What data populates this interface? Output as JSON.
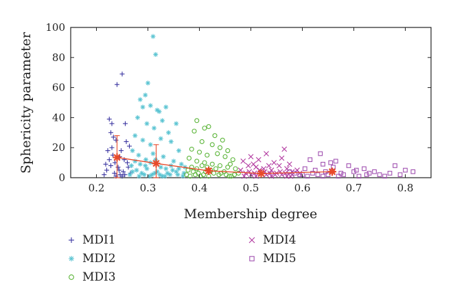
{
  "chart_data": {
    "type": "scatter",
    "xlabel": "Membership degree",
    "ylabel": "Sphericity parameter",
    "xlim": [
      0.15,
      0.85
    ],
    "ylim": [
      0,
      100
    ],
    "x_ticks": [
      0.2,
      0.3,
      0.4,
      0.5,
      0.6,
      0.7,
      0.8
    ],
    "y_ticks": [
      0,
      20,
      40,
      60,
      80,
      100
    ],
    "grid": false,
    "legend_position": "below",
    "series": [
      {
        "name": "MDI1",
        "marker": "plus",
        "color": "#3a34a0",
        "points": [
          [
            0.215,
            2
          ],
          [
            0.22,
            5
          ],
          [
            0.222,
            18
          ],
          [
            0.225,
            12
          ],
          [
            0.228,
            8
          ],
          [
            0.23,
            20
          ],
          [
            0.232,
            15
          ],
          [
            0.235,
            3
          ],
          [
            0.236,
            10
          ],
          [
            0.238,
            25
          ],
          [
            0.24,
            62
          ],
          [
            0.242,
            7
          ],
          [
            0.245,
            14
          ],
          [
            0.246,
            2
          ],
          [
            0.248,
            18
          ],
          [
            0.25,
            69
          ],
          [
            0.252,
            4
          ],
          [
            0.254,
            12
          ],
          [
            0.256,
            36
          ],
          [
            0.258,
            24
          ],
          [
            0.26,
            10
          ],
          [
            0.262,
            7
          ],
          [
            0.264,
            21
          ],
          [
            0.266,
            3
          ],
          [
            0.225,
            39
          ],
          [
            0.23,
            36
          ],
          [
            0.228,
            30
          ],
          [
            0.233,
            27
          ],
          [
            0.218,
            9
          ],
          [
            0.238,
            1
          ],
          [
            0.244,
            5
          ],
          [
            0.25,
            1
          ],
          [
            0.255,
            2
          ]
        ]
      },
      {
        "name": "MDI2",
        "marker": "asterisk",
        "color": "#5bc4d2",
        "points": [
          [
            0.31,
            94
          ],
          [
            0.315,
            82
          ],
          [
            0.3,
            63
          ],
          [
            0.295,
            55
          ],
          [
            0.285,
            52
          ],
          [
            0.29,
            47
          ],
          [
            0.305,
            48
          ],
          [
            0.318,
            45
          ],
          [
            0.322,
            44
          ],
          [
            0.335,
            47
          ],
          [
            0.28,
            40
          ],
          [
            0.298,
            36
          ],
          [
            0.312,
            33
          ],
          [
            0.328,
            38
          ],
          [
            0.34,
            30
          ],
          [
            0.355,
            36
          ],
          [
            0.275,
            28
          ],
          [
            0.29,
            25
          ],
          [
            0.305,
            22
          ],
          [
            0.325,
            26
          ],
          [
            0.345,
            24
          ],
          [
            0.36,
            18
          ],
          [
            0.27,
            18
          ],
          [
            0.282,
            15
          ],
          [
            0.296,
            12
          ],
          [
            0.31,
            16
          ],
          [
            0.33,
            14
          ],
          [
            0.35,
            11
          ],
          [
            0.365,
            9
          ],
          [
            0.372,
            7
          ],
          [
            0.268,
            8
          ],
          [
            0.278,
            5
          ],
          [
            0.288,
            3
          ],
          [
            0.298,
            6
          ],
          [
            0.308,
            2
          ],
          [
            0.318,
            4
          ],
          [
            0.328,
            1
          ],
          [
            0.338,
            3
          ],
          [
            0.348,
            5
          ],
          [
            0.358,
            2
          ],
          [
            0.368,
            1
          ],
          [
            0.275,
            11
          ],
          [
            0.285,
            9
          ],
          [
            0.295,
            8
          ],
          [
            0.305,
            10
          ],
          [
            0.315,
            12
          ],
          [
            0.325,
            7
          ],
          [
            0.335,
            6
          ],
          [
            0.345,
            8
          ],
          [
            0.355,
            4
          ],
          [
            0.265,
            2
          ],
          [
            0.27,
            4
          ],
          [
            0.283,
            1
          ],
          [
            0.293,
            2
          ],
          [
            0.303,
            1
          ],
          [
            0.313,
            3
          ],
          [
            0.323,
            2
          ],
          [
            0.333,
            1
          ],
          [
            0.343,
            2
          ],
          [
            0.36,
            6
          ],
          [
            0.37,
            3
          ]
        ]
      },
      {
        "name": "MDI3",
        "marker": "circle",
        "color": "#5cb539",
        "points": [
          [
            0.395,
            38
          ],
          [
            0.41,
            33
          ],
          [
            0.418,
            34
          ],
          [
            0.43,
            28
          ],
          [
            0.39,
            31
          ],
          [
            0.445,
            25
          ],
          [
            0.405,
            24
          ],
          [
            0.425,
            22
          ],
          [
            0.44,
            20
          ],
          [
            0.455,
            18
          ],
          [
            0.385,
            19
          ],
          [
            0.4,
            17
          ],
          [
            0.415,
            15
          ],
          [
            0.435,
            16
          ],
          [
            0.45,
            14
          ],
          [
            0.465,
            12
          ],
          [
            0.38,
            13
          ],
          [
            0.395,
            11
          ],
          [
            0.41,
            10
          ],
          [
            0.425,
            9
          ],
          [
            0.44,
            8
          ],
          [
            0.455,
            7
          ],
          [
            0.47,
            6
          ],
          [
            0.378,
            5
          ],
          [
            0.388,
            4
          ],
          [
            0.398,
            3
          ],
          [
            0.408,
            2
          ],
          [
            0.418,
            1
          ],
          [
            0.428,
            3
          ],
          [
            0.438,
            2
          ],
          [
            0.448,
            4
          ],
          [
            0.458,
            1
          ],
          [
            0.468,
            2
          ],
          [
            0.476,
            3
          ],
          [
            0.382,
            1
          ],
          [
            0.392,
            2
          ],
          [
            0.402,
            1
          ],
          [
            0.412,
            4
          ],
          [
            0.422,
            5
          ],
          [
            0.432,
            6
          ],
          [
            0.442,
            3
          ],
          [
            0.452,
            2
          ],
          [
            0.462,
            1
          ],
          [
            0.375,
            2
          ],
          [
            0.385,
            7
          ],
          [
            0.395,
            6
          ],
          [
            0.405,
            8
          ],
          [
            0.415,
            7
          ],
          [
            0.46,
            9
          ]
        ]
      },
      {
        "name": "MDI4",
        "marker": "cross",
        "color": "#b0359e",
        "points": [
          [
            0.565,
            19
          ],
          [
            0.5,
            14
          ],
          [
            0.515,
            12
          ],
          [
            0.53,
            16
          ],
          [
            0.545,
            10
          ],
          [
            0.56,
            13
          ],
          [
            0.575,
            9
          ],
          [
            0.485,
            11
          ],
          [
            0.495,
            8
          ],
          [
            0.51,
            7
          ],
          [
            0.525,
            6
          ],
          [
            0.54,
            5
          ],
          [
            0.555,
            8
          ],
          [
            0.57,
            6
          ],
          [
            0.58,
            4
          ],
          [
            0.59,
            5
          ],
          [
            0.48,
            5
          ],
          [
            0.49,
            3
          ],
          [
            0.5,
            2
          ],
          [
            0.51,
            1
          ],
          [
            0.52,
            3
          ],
          [
            0.53,
            2
          ],
          [
            0.54,
            1
          ],
          [
            0.55,
            3
          ],
          [
            0.56,
            2
          ],
          [
            0.57,
            1
          ],
          [
            0.58,
            2
          ],
          [
            0.595,
            3
          ],
          [
            0.487,
            1
          ],
          [
            0.497,
            4
          ],
          [
            0.507,
            3
          ],
          [
            0.517,
            5
          ],
          [
            0.527,
            4
          ],
          [
            0.537,
            3
          ],
          [
            0.547,
            2
          ],
          [
            0.557,
            4
          ],
          [
            0.567,
            3
          ],
          [
            0.577,
            1
          ],
          [
            0.505,
            9
          ],
          [
            0.535,
            8
          ]
        ]
      },
      {
        "name": "MDI5",
        "marker": "square",
        "color": "#a050b0",
        "points": [
          [
            0.635,
            16
          ],
          [
            0.615,
            12
          ],
          [
            0.665,
            11
          ],
          [
            0.69,
            8
          ],
          [
            0.72,
            6
          ],
          [
            0.78,
            8
          ],
          [
            0.8,
            5
          ],
          [
            0.815,
            4
          ],
          [
            0.605,
            6
          ],
          [
            0.625,
            5
          ],
          [
            0.645,
            4
          ],
          [
            0.66,
            7
          ],
          [
            0.675,
            3
          ],
          [
            0.7,
            4
          ],
          [
            0.73,
            3
          ],
          [
            0.75,
            2
          ],
          [
            0.77,
            3
          ],
          [
            0.79,
            2
          ],
          [
            0.6,
            2
          ],
          [
            0.61,
            1
          ],
          [
            0.62,
            3
          ],
          [
            0.63,
            2
          ],
          [
            0.64,
            1
          ],
          [
            0.65,
            2
          ],
          [
            0.67,
            1
          ],
          [
            0.68,
            2
          ],
          [
            0.71,
            1
          ],
          [
            0.74,
            4
          ],
          [
            0.76,
            1
          ],
          [
            0.575,
            4
          ],
          [
            0.585,
            3
          ],
          [
            0.595,
            2
          ],
          [
            0.64,
            9
          ],
          [
            0.655,
            10
          ],
          [
            0.705,
            5
          ],
          [
            0.725,
            2
          ]
        ]
      },
      {
        "name": "",
        "marker": "asterisk-line",
        "color": "#e84a2a",
        "points": [
          [
            0.24,
            13.5
          ],
          [
            0.316,
            9.5
          ],
          [
            0.418,
            4.6
          ],
          [
            0.52,
            2.8
          ],
          [
            0.658,
            4.0
          ]
        ],
        "errors": [
          14.5,
          12.5,
          1.5,
          1.0,
          0.5
        ]
      }
    ]
  },
  "legend": {
    "items": [
      {
        "label": "MDI1"
      },
      {
        "label": "MDI2"
      },
      {
        "label": "MDI3"
      },
      {
        "label": "MDI4"
      },
      {
        "label": "MDI5"
      }
    ]
  }
}
